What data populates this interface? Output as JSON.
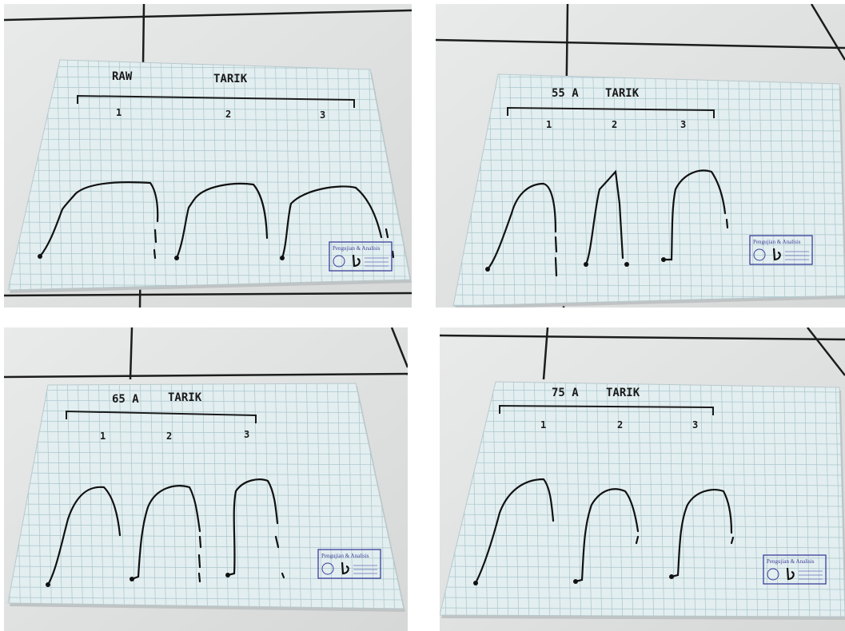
{
  "panels": [
    {
      "title": "RAW",
      "subtitle": "TARIK",
      "labels": [
        "1",
        "2",
        "3"
      ],
      "stamp": "Pengujian & Analisis"
    },
    {
      "title": "55 A",
      "subtitle": "TARIK",
      "labels": [
        "1",
        "2",
        "3"
      ],
      "stamp": "Pengujian & Analisis"
    },
    {
      "title": "65 A",
      "subtitle": "TARIK",
      "labels": [
        "1",
        "2",
        "3"
      ],
      "stamp": "Pengujian & Analisis"
    },
    {
      "title": "75 A",
      "subtitle": "TARIK",
      "labels": [
        "1",
        "2",
        "3"
      ],
      "stamp": "Pengujian & Analisis"
    }
  ]
}
